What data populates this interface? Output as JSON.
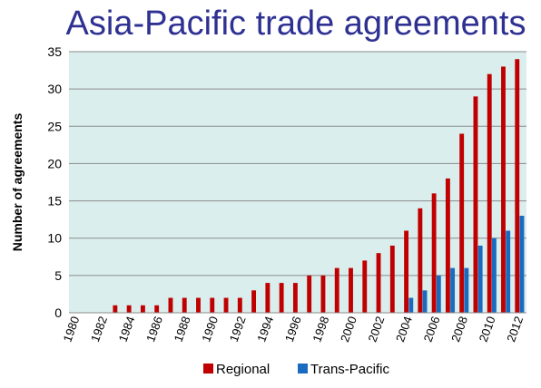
{
  "chart_data": {
    "type": "bar",
    "title": "Asia-Pacific trade agreements",
    "xlabel": "",
    "ylabel": "Number of agreements",
    "ylim": [
      0,
      35
    ],
    "yticks": [
      0,
      5,
      10,
      15,
      20,
      25,
      30,
      35
    ],
    "grid": true,
    "legend_position": "bottom",
    "categories": [
      "1980",
      "1981",
      "1982",
      "1983",
      "1984",
      "1985",
      "1986",
      "1987",
      "1988",
      "1989",
      "1990",
      "1991",
      "1992",
      "1993",
      "1994",
      "1995",
      "1996",
      "1997",
      "1998",
      "1999",
      "2000",
      "2001",
      "2002",
      "2003",
      "2004",
      "2005",
      "2006",
      "2007",
      "2008",
      "2009",
      "2010",
      "2011",
      "2012"
    ],
    "xtick_labels": [
      "1980",
      "1982",
      "1984",
      "1986",
      "1988",
      "1990",
      "1992",
      "1994",
      "1996",
      "1998",
      "2000",
      "2002",
      "2004",
      "2006",
      "2008",
      "2010",
      "2012"
    ],
    "series": [
      {
        "name": "Regional",
        "color": "#c00000",
        "values": [
          0,
          0,
          0,
          1,
          1,
          1,
          1,
          2,
          2,
          2,
          2,
          2,
          2,
          3,
          4,
          4,
          4,
          5,
          5,
          6,
          6,
          7,
          8,
          9,
          11,
          14,
          16,
          18,
          24,
          29,
          32,
          33,
          34
        ]
      },
      {
        "name": "Trans-Pacific",
        "color": "#1a6bbf",
        "values": [
          0,
          0,
          0,
          0,
          0,
          0,
          0,
          0,
          0,
          0,
          0,
          0,
          0,
          0,
          0,
          0,
          0,
          0,
          0,
          0,
          0,
          0,
          0,
          0,
          2,
          3,
          5,
          6,
          6,
          9,
          10,
          11,
          13
        ]
      }
    ],
    "colors": {
      "title": "#2e3192",
      "plot_background": "#dbeeee",
      "gridline": "#8a8a8a"
    }
  }
}
